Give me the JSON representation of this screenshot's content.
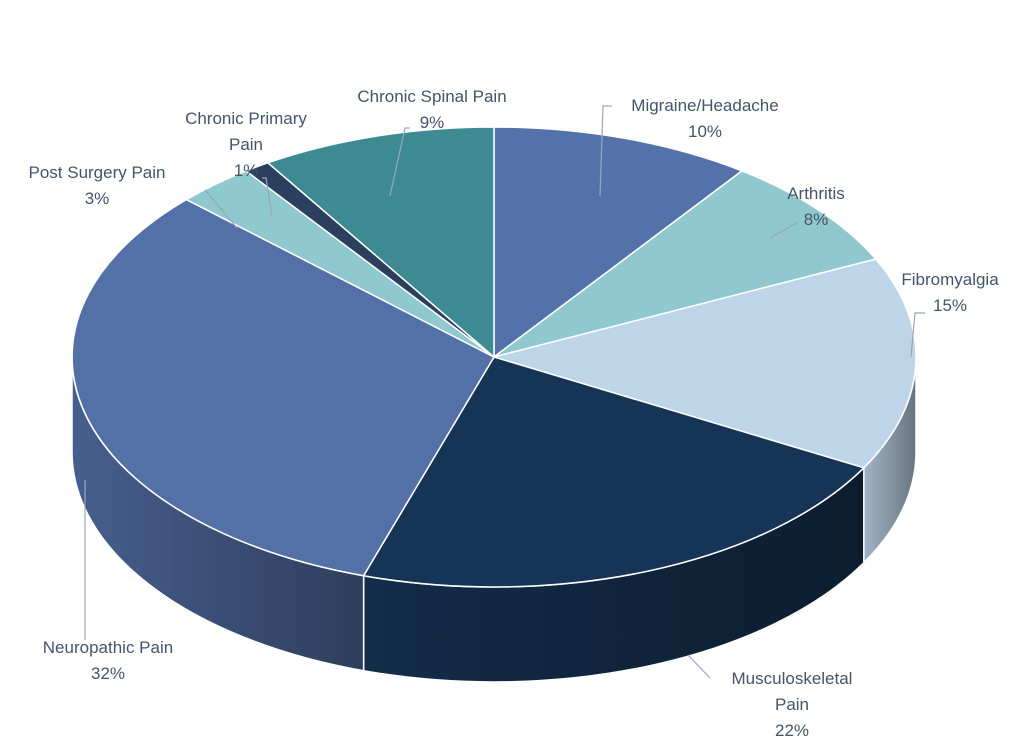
{
  "chart_data": {
    "type": "pie",
    "categories": [
      "Migraine/Headache",
      "Arthritis",
      "Fibromyalgia",
      "Musculoskeletal Pain",
      "Neuropathic Pain",
      "Post Surgery Pain",
      "Chronic Primary Pain",
      "Chronic Spinal Pain"
    ],
    "values": [
      10,
      8,
      15,
      22,
      32,
      3,
      1,
      9
    ],
    "value_labels": [
      "10%",
      "8%",
      "15%",
      "22%",
      "32%",
      "3%",
      "1%",
      "9%"
    ],
    "colors": [
      "#5571a9",
      "#8fc8cf",
      "#bdd4e9",
      "#163456",
      "#5370a7",
      "#8fc8cf",
      "#2b3f5e",
      "#3e8a92"
    ]
  }
}
